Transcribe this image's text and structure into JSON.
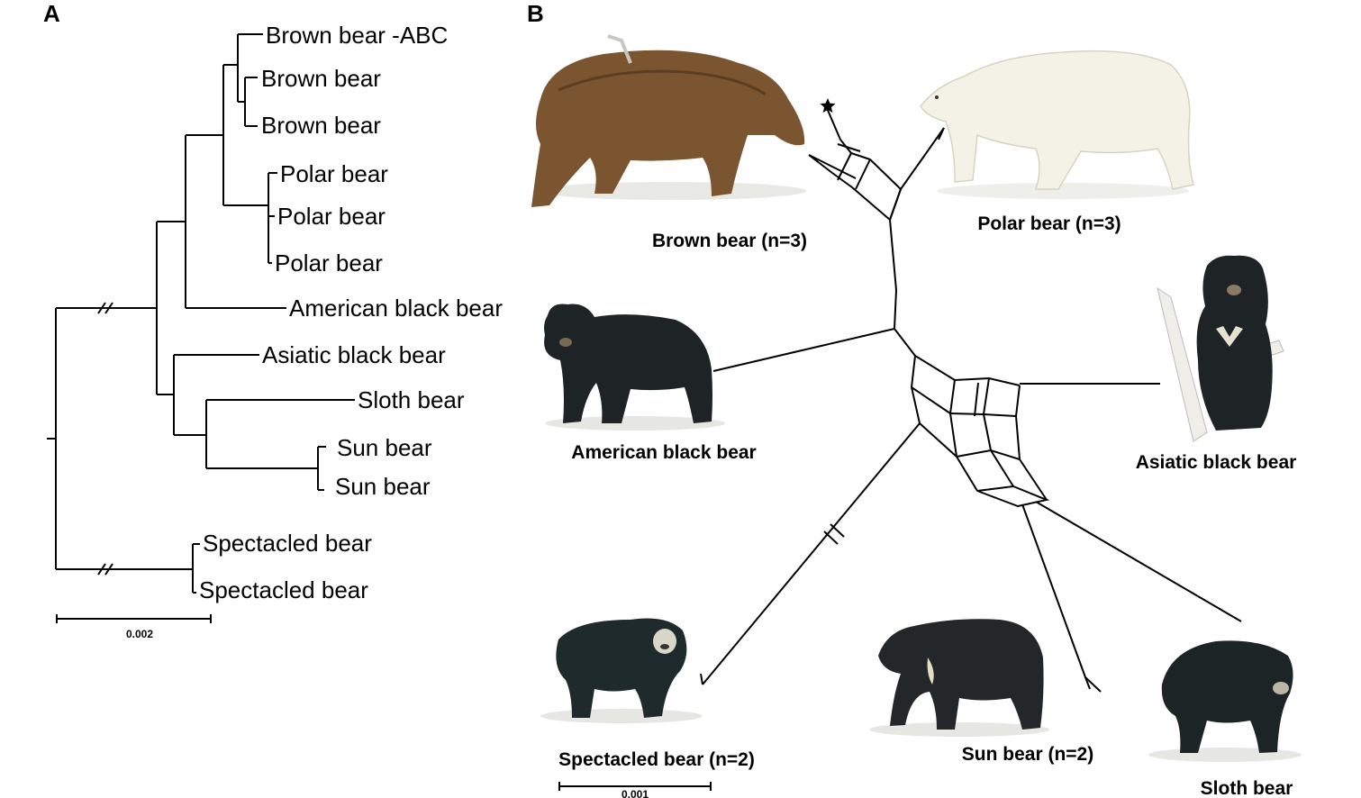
{
  "panel_a": {
    "letter": "A",
    "leaves": [
      "Brown bear -ABC",
      "Brown bear",
      "Brown bear",
      "Polar bear",
      "Polar bear",
      "Polar bear",
      "American black bear",
      "Asiatic black bear",
      "Sloth bear",
      "Sun bear",
      "Sun bear",
      "Spectacled bear",
      "Spectacled bear"
    ],
    "scale_label": "0.002"
  },
  "panel_b": {
    "letter": "B",
    "captions": {
      "brown": "Brown bear (n=3)",
      "polar": "Polar bear (n=3)",
      "american": "American black bear",
      "asiatic": "Asiatic black bear",
      "spectacled": "Spectacled bear (n=2)",
      "sun": "Sun bear (n=2)",
      "sloth": "Sloth bear"
    },
    "scale_label": "0.001",
    "colors": {
      "brown_bear": "#7a5530",
      "polar_bear": "#f4f1e6",
      "black_bears": "#1e2426",
      "sun_bear": "#23272a",
      "chest_mark": "#e6e0cf"
    }
  }
}
